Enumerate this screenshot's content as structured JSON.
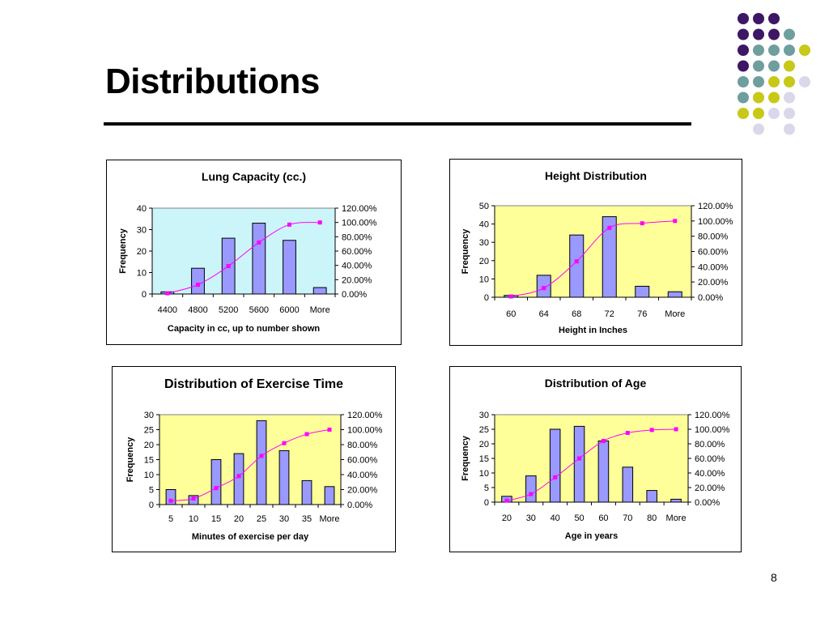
{
  "slide": {
    "title": "Distributions",
    "page_number": "8"
  },
  "decoration": {
    "dot_colors": [
      "#3d1665",
      "#6f9e9e",
      "#c8c818",
      "#d8d8ea"
    ]
  },
  "chart_data": [
    {
      "type": "bar",
      "title": "Lung Capacity (cc.)",
      "xlabel": "Capacity in cc, up to number shown",
      "ylabel": "Frequency",
      "categories": [
        "4400",
        "4800",
        "5200",
        "5600",
        "6000",
        "More"
      ],
      "ylim": [
        0,
        40
      ],
      "yticks": [
        "0",
        "10",
        "20",
        "30",
        "40"
      ],
      "y2ticks": [
        "0.00%",
        "20.00%",
        "40.00%",
        "60.00%",
        "80.00%",
        "100.00%",
        "120.00%"
      ],
      "series": [
        {
          "values": [
            1,
            12,
            26,
            33,
            25,
            3
          ]
        },
        {
          "type": "line",
          "values": [
            0.01,
            0.13,
            0.39,
            0.72,
            0.97,
            1.0
          ]
        }
      ],
      "plot_bg": "#ccf5fa"
    },
    {
      "type": "bar",
      "title": "Height Distribution",
      "xlabel": "Height in Inches",
      "ylabel": "Frequency",
      "categories": [
        "60",
        "64",
        "68",
        "72",
        "76",
        "More"
      ],
      "ylim": [
        0,
        50
      ],
      "yticks": [
        "0",
        "10",
        "20",
        "30",
        "40",
        "50"
      ],
      "y2ticks": [
        "0.00%",
        "20.00%",
        "40.00%",
        "60.00%",
        "80.00%",
        "100.00%",
        "120.00%"
      ],
      "series": [
        {
          "values": [
            1,
            12,
            34,
            44,
            6,
            3
          ]
        },
        {
          "type": "line",
          "values": [
            0.01,
            0.12,
            0.47,
            0.91,
            0.97,
            1.0
          ]
        }
      ],
      "plot_bg": "#ffff99"
    },
    {
      "type": "bar",
      "title": "Distribution of Exercise Time",
      "xlabel": "Minutes of exercise per day",
      "ylabel": "Frequency",
      "categories": [
        "5",
        "10",
        "15",
        "20",
        "25",
        "30",
        "35",
        "More"
      ],
      "ylim": [
        0,
        30
      ],
      "yticks": [
        "0",
        "5",
        "10",
        "15",
        "20",
        "25",
        "30"
      ],
      "y2ticks": [
        "0.00%",
        "20.00%",
        "40.00%",
        "60.00%",
        "80.00%",
        "100.00%",
        "120.00%"
      ],
      "series": [
        {
          "values": [
            5,
            3,
            15,
            17,
            28,
            18,
            8,
            6
          ]
        },
        {
          "type": "line",
          "values": [
            0.05,
            0.08,
            0.22,
            0.38,
            0.65,
            0.82,
            0.94,
            1.0
          ]
        }
      ],
      "plot_bg": "#ffff99"
    },
    {
      "type": "bar",
      "title": "Distribution of Age",
      "xlabel": "Age in years",
      "ylabel": "Frequency",
      "categories": [
        "20",
        "30",
        "40",
        "50",
        "60",
        "70",
        "80",
        "More"
      ],
      "ylim": [
        0,
        30
      ],
      "yticks": [
        "0",
        "5",
        "10",
        "15",
        "20",
        "25",
        "30"
      ],
      "y2ticks": [
        "0.00%",
        "20.00%",
        "40.00%",
        "60.00%",
        "80.00%",
        "100.00%",
        "120.00%"
      ],
      "series": [
        {
          "values": [
            2,
            9,
            25,
            26,
            21,
            12,
            4,
            1
          ]
        },
        {
          "type": "line",
          "values": [
            0.02,
            0.11,
            0.34,
            0.6,
            0.84,
            0.95,
            0.99,
            1.0
          ]
        }
      ],
      "plot_bg": "#ffff99"
    }
  ]
}
